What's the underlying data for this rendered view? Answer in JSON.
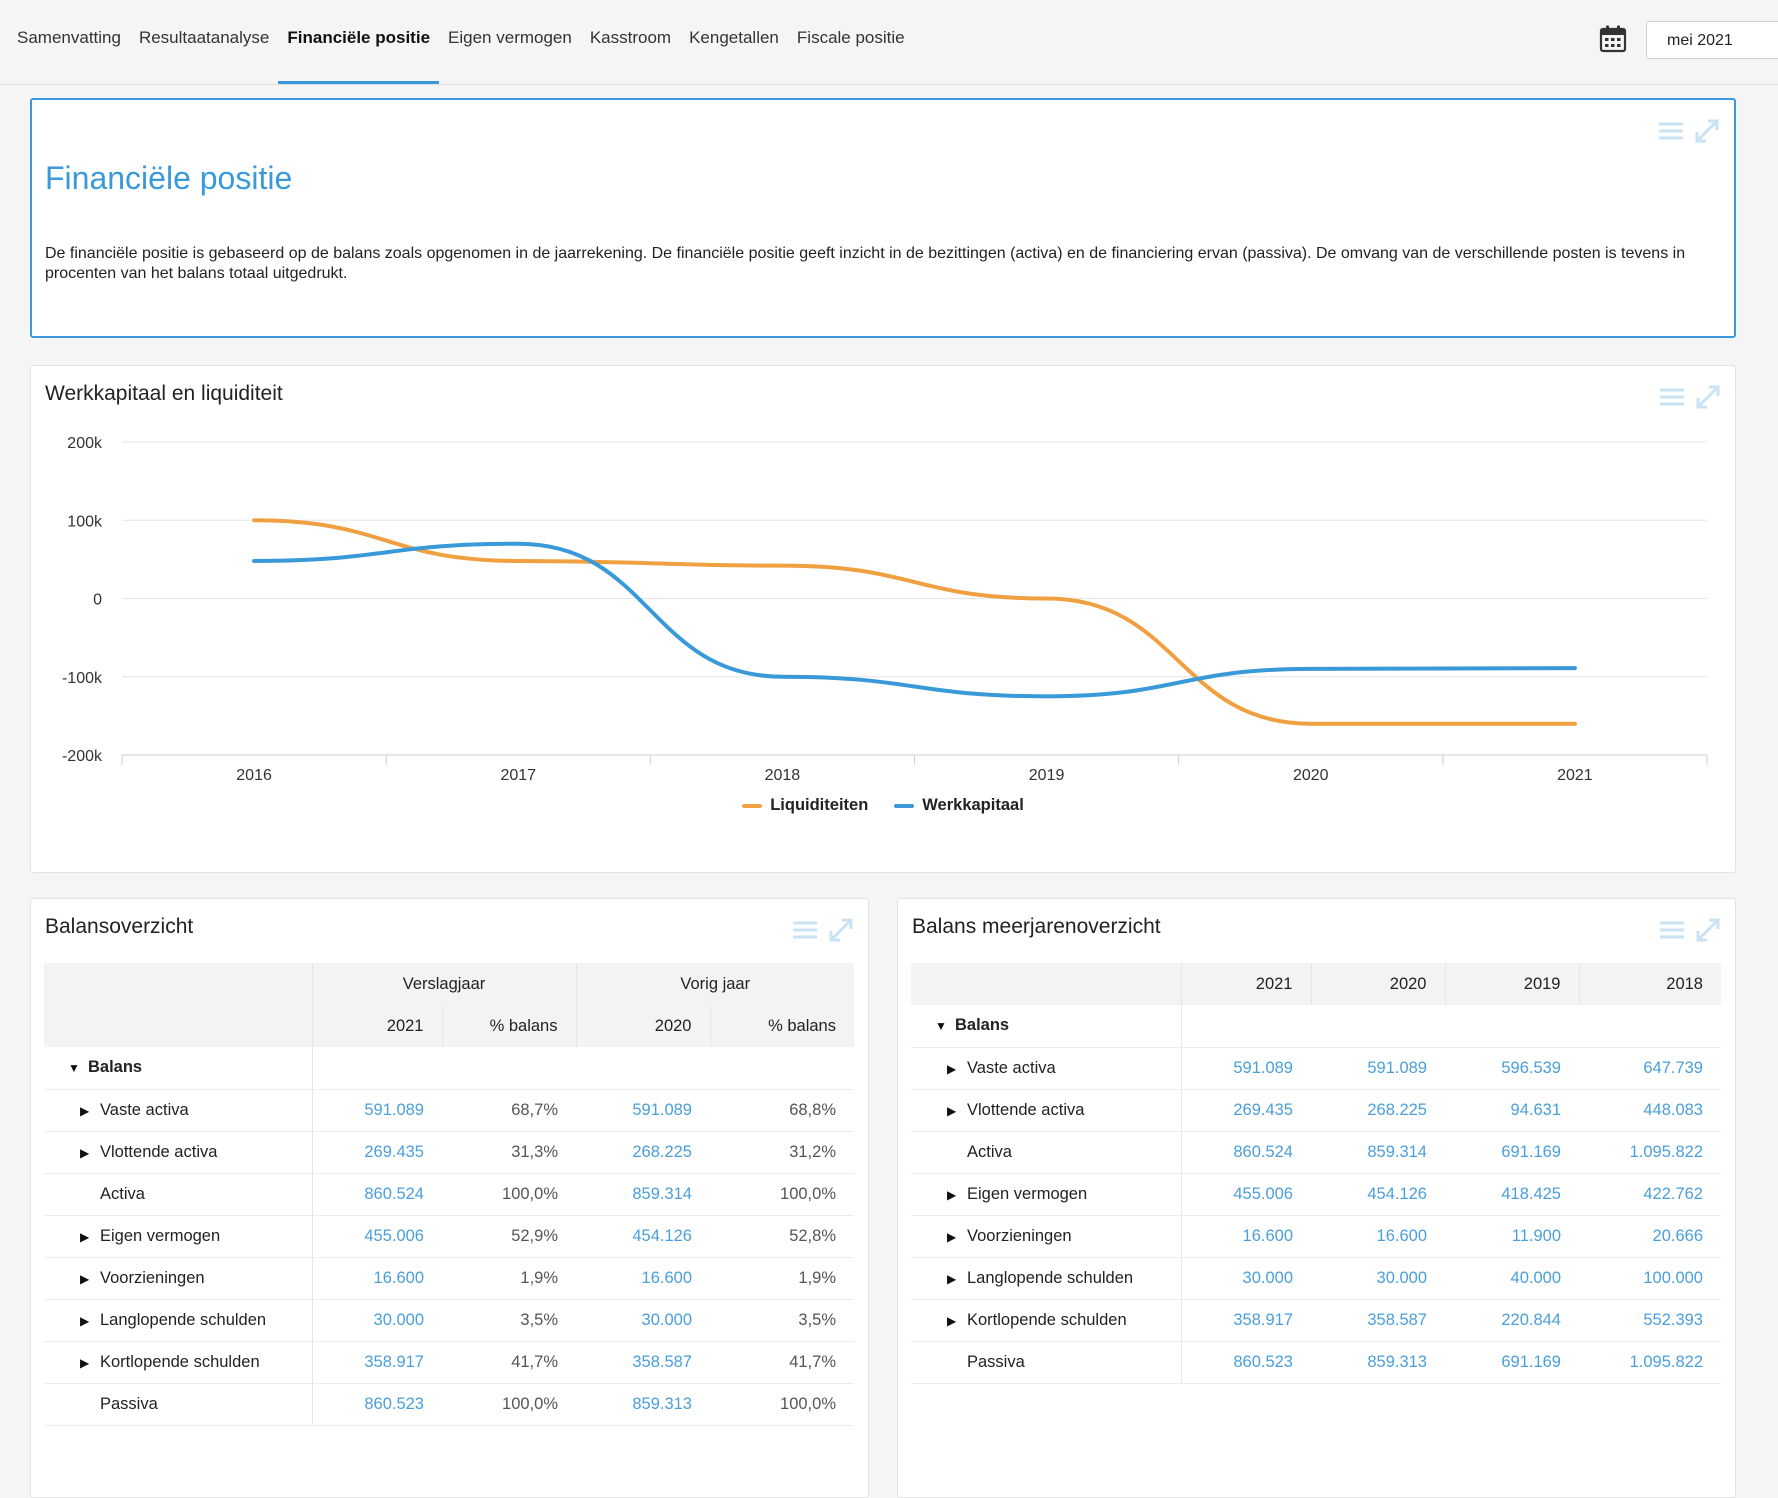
{
  "nav": {
    "tabs": [
      {
        "label": "Samenvatting"
      },
      {
        "label": "Resultaatanalyse"
      },
      {
        "label": "Financiële positie"
      },
      {
        "label": "Eigen vermogen"
      },
      {
        "label": "Kasstroom"
      },
      {
        "label": "Kengetallen"
      },
      {
        "label": "Fiscale positie"
      }
    ],
    "active_tab": "Financiële positie",
    "date_value": "mei 2021",
    "calendar_icon": "calendar-icon"
  },
  "intro": {
    "title": "Financiële positie",
    "text": "De financiële positie is gebaseerd op de balans zoals opgenomen in de jaarrekening. De financiële positie geeft inzicht in de bezittingen (activa) en de financiering ervan (passiva). De omvang van de verschillende posten is tevens in procenten van het balans totaal uitgedrukt."
  },
  "chart_panel": {
    "title": "Werkkapitaal en liquiditeit"
  },
  "chart_data": {
    "type": "line",
    "x": [
      "2016",
      "2017",
      "2018",
      "2019",
      "2020",
      "2021"
    ],
    "series": [
      {
        "name": "Liquiditeiten",
        "color": "#f0a040",
        "values": [
          100000,
          48000,
          42000,
          0,
          -160000,
          -160000
        ]
      },
      {
        "name": "Werkkapitaal",
        "color": "#3a9ad9",
        "values": [
          48000,
          70000,
          -100000,
          -125000,
          -90000,
          -89000
        ]
      }
    ],
    "yticks": [
      "200k",
      "100k",
      "0",
      "-100k",
      "-200k"
    ],
    "ylim": [
      -200000,
      200000
    ],
    "grid": true,
    "legend": "bottom"
  },
  "balans": {
    "title": "Balansoverzicht",
    "group_headers": [
      "Verslagjaar",
      "Vorig jaar"
    ],
    "col_headers": [
      "2021",
      "% balans",
      "2020",
      "% balans"
    ],
    "root": "Balans",
    "rows": [
      {
        "label": "Vaste activa",
        "v1": "591.089",
        "p1": "68,7%",
        "v2": "591.089",
        "p2": "68,8%"
      },
      {
        "label": "Vlottende activa",
        "v1": "269.435",
        "p1": "31,3%",
        "v2": "268.225",
        "p2": "31,2%"
      },
      {
        "label": "Activa",
        "v1": "860.524",
        "p1": "100,0%",
        "v2": "859.314",
        "p2": "100,0%"
      },
      {
        "label": "Eigen vermogen",
        "v1": "455.006",
        "p1": "52,9%",
        "v2": "454.126",
        "p2": "52,8%"
      },
      {
        "label": "Voorzieningen",
        "v1": "16.600",
        "p1": "1,9%",
        "v2": "16.600",
        "p2": "1,9%"
      },
      {
        "label": "Langlopende schulden",
        "v1": "30.000",
        "p1": "3,5%",
        "v2": "30.000",
        "p2": "3,5%"
      },
      {
        "label": "Kortlopende schulden",
        "v1": "358.917",
        "p1": "41,7%",
        "v2": "358.587",
        "p2": "41,7%"
      },
      {
        "label": "Passiva",
        "v1": "860.523",
        "p1": "100,0%",
        "v2": "859.313",
        "p2": "100,0%"
      }
    ]
  },
  "meerjaren": {
    "title": "Balans meerjarenoverzicht",
    "col_headers": [
      "2021",
      "2020",
      "2019",
      "2018"
    ],
    "root": "Balans",
    "rows": [
      {
        "label": "Vaste activa",
        "vals": [
          "591.089",
          "591.089",
          "596.539",
          "647.739"
        ]
      },
      {
        "label": "Vlottende activa",
        "vals": [
          "269.435",
          "268.225",
          "94.631",
          "448.083"
        ]
      },
      {
        "label": "Activa",
        "vals": [
          "860.524",
          "859.314",
          "691.169",
          "1.095.822"
        ]
      },
      {
        "label": "Eigen vermogen",
        "vals": [
          "455.006",
          "454.126",
          "418.425",
          "422.762"
        ]
      },
      {
        "label": "Voorzieningen",
        "vals": [
          "16.600",
          "16.600",
          "11.900",
          "20.666"
        ]
      },
      {
        "label": "Langlopende schulden",
        "vals": [
          "30.000",
          "30.000",
          "40.000",
          "100.000"
        ]
      },
      {
        "label": "Kortlopende schulden",
        "vals": [
          "358.917",
          "358.587",
          "220.844",
          "552.393"
        ]
      },
      {
        "label": "Passiva",
        "vals": [
          "860.523",
          "859.313",
          "691.169",
          "1.095.822"
        ]
      }
    ]
  }
}
